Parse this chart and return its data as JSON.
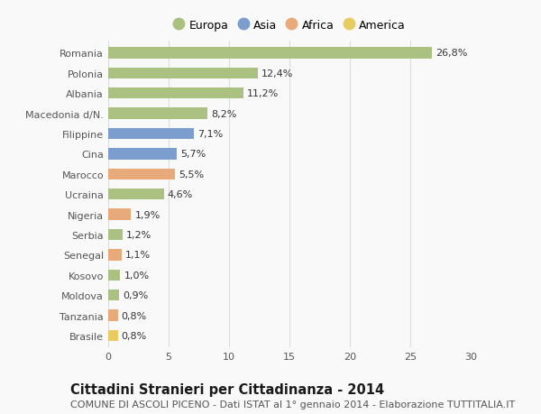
{
  "categories": [
    "Romania",
    "Polonia",
    "Albania",
    "Macedonia d/N.",
    "Filippine",
    "Cina",
    "Marocco",
    "Ucraina",
    "Nigeria",
    "Serbia",
    "Senegal",
    "Kosovo",
    "Moldova",
    "Tanzania",
    "Brasile"
  ],
  "values": [
    26.8,
    12.4,
    11.2,
    8.2,
    7.1,
    5.7,
    5.5,
    4.6,
    1.9,
    1.2,
    1.1,
    1.0,
    0.9,
    0.8,
    0.8
  ],
  "labels": [
    "26,8%",
    "12,4%",
    "11,2%",
    "8,2%",
    "7,1%",
    "5,7%",
    "5,5%",
    "4,6%",
    "1,9%",
    "1,2%",
    "1,1%",
    "1,0%",
    "0,9%",
    "0,8%",
    "0,8%"
  ],
  "continent": [
    "Europa",
    "Europa",
    "Europa",
    "Europa",
    "Asia",
    "Asia",
    "Africa",
    "Europa",
    "Africa",
    "Europa",
    "Africa",
    "Europa",
    "Europa",
    "Africa",
    "America"
  ],
  "colors": {
    "Europa": "#abc181",
    "Asia": "#7b9ecf",
    "Africa": "#e8aa7a",
    "America": "#e8cc62"
  },
  "legend_order": [
    "Europa",
    "Asia",
    "Africa",
    "America"
  ],
  "xlim": [
    0,
    30
  ],
  "xticks": [
    0,
    5,
    10,
    15,
    20,
    25,
    30
  ],
  "title": "Cittadini Stranieri per Cittadinanza - 2014",
  "subtitle": "COMUNE DI ASCOLI PICENO - Dati ISTAT al 1° gennaio 2014 - Elaborazione TUTTITALIA.IT",
  "background_color": "#f9f9f9",
  "grid_color": "#dddddd",
  "bar_height": 0.55,
  "title_fontsize": 10.5,
  "subtitle_fontsize": 8,
  "label_fontsize": 8,
  "tick_fontsize": 8,
  "legend_fontsize": 9
}
